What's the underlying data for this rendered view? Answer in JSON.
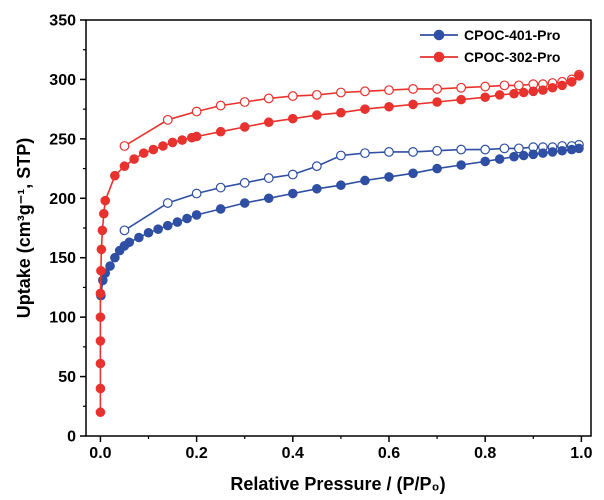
{
  "chart_data": {
    "type": "scatter",
    "xlabel": "Relative Pressure / (P/P₀)",
    "ylabel": "Uptake (cm³g⁻¹, STP)",
    "xlim": [
      -0.03,
      1.02
    ],
    "ylim": [
      0,
      350
    ],
    "xticks": [
      0.0,
      0.2,
      0.4,
      0.6,
      0.8,
      1.0
    ],
    "xtick_labels": [
      "0.0",
      "0.2",
      "0.4",
      "0.6",
      "0.8",
      "1.0"
    ],
    "yticks": [
      0,
      50,
      100,
      150,
      200,
      250,
      300,
      350
    ],
    "ytick_labels": [
      "0",
      "50",
      "100",
      "150",
      "200",
      "250",
      "300",
      "350"
    ],
    "grid": false,
    "legend_position": "top-right",
    "series": [
      {
        "name": "CPOC-401-Pro",
        "color": "#2e4fa3",
        "adsorption": [
          [
            0.001,
            118
          ],
          [
            0.005,
            131
          ],
          [
            0.01,
            137
          ],
          [
            0.02,
            143
          ],
          [
            0.03,
            150
          ],
          [
            0.04,
            156
          ],
          [
            0.05,
            160
          ],
          [
            0.06,
            163
          ],
          [
            0.08,
            167
          ],
          [
            0.1,
            171
          ],
          [
            0.12,
            174
          ],
          [
            0.14,
            177
          ],
          [
            0.16,
            180
          ],
          [
            0.18,
            183
          ],
          [
            0.2,
            186
          ],
          [
            0.25,
            191
          ],
          [
            0.3,
            196
          ],
          [
            0.35,
            200
          ],
          [
            0.4,
            204
          ],
          [
            0.45,
            208
          ],
          [
            0.5,
            211
          ],
          [
            0.55,
            215
          ],
          [
            0.6,
            218
          ],
          [
            0.65,
            221
          ],
          [
            0.7,
            225
          ],
          [
            0.75,
            228
          ],
          [
            0.8,
            231
          ],
          [
            0.83,
            233
          ],
          [
            0.86,
            235
          ],
          [
            0.88,
            236
          ],
          [
            0.9,
            237
          ],
          [
            0.92,
            238
          ],
          [
            0.94,
            239
          ],
          [
            0.96,
            240
          ],
          [
            0.98,
            241
          ],
          [
            0.995,
            242
          ]
        ],
        "desorption": [
          [
            0.995,
            245
          ],
          [
            0.98,
            244
          ],
          [
            0.96,
            244
          ],
          [
            0.94,
            243
          ],
          [
            0.92,
            243
          ],
          [
            0.9,
            243
          ],
          [
            0.87,
            242
          ],
          [
            0.84,
            242
          ],
          [
            0.8,
            241
          ],
          [
            0.75,
            241
          ],
          [
            0.7,
            240
          ],
          [
            0.65,
            239
          ],
          [
            0.6,
            239
          ],
          [
            0.55,
            238
          ],
          [
            0.5,
            236
          ],
          [
            0.45,
            227
          ],
          [
            0.4,
            220
          ],
          [
            0.35,
            217
          ],
          [
            0.3,
            213
          ],
          [
            0.25,
            209
          ],
          [
            0.2,
            204
          ],
          [
            0.14,
            196
          ],
          [
            0.05,
            173
          ]
        ]
      },
      {
        "name": "CPOC-302-Pro",
        "color": "#e8322e",
        "adsorption": [
          [
            0.0,
            20
          ],
          [
            0.0,
            40
          ],
          [
            0.0,
            61
          ],
          [
            0.0,
            80
          ],
          [
            0.0,
            100
          ],
          [
            0.0,
            120
          ],
          [
            0.001,
            139
          ],
          [
            0.002,
            157
          ],
          [
            0.004,
            173
          ],
          [
            0.007,
            187
          ],
          [
            0.01,
            198
          ],
          [
            0.03,
            219
          ],
          [
            0.05,
            227
          ],
          [
            0.07,
            233
          ],
          [
            0.09,
            238
          ],
          [
            0.11,
            241
          ],
          [
            0.13,
            244
          ],
          [
            0.15,
            247
          ],
          [
            0.17,
            249
          ],
          [
            0.19,
            251
          ],
          [
            0.2,
            252
          ],
          [
            0.25,
            256
          ],
          [
            0.3,
            260
          ],
          [
            0.35,
            264
          ],
          [
            0.4,
            267
          ],
          [
            0.45,
            270
          ],
          [
            0.5,
            272
          ],
          [
            0.55,
            275
          ],
          [
            0.6,
            277
          ],
          [
            0.65,
            279
          ],
          [
            0.7,
            281
          ],
          [
            0.75,
            283
          ],
          [
            0.8,
            285
          ],
          [
            0.83,
            287
          ],
          [
            0.86,
            288
          ],
          [
            0.88,
            289
          ],
          [
            0.9,
            290
          ],
          [
            0.92,
            291
          ],
          [
            0.94,
            293
          ],
          [
            0.96,
            295
          ],
          [
            0.98,
            298
          ],
          [
            0.995,
            303
          ]
        ],
        "desorption": [
          [
            0.995,
            304
          ],
          [
            0.98,
            300
          ],
          [
            0.96,
            298
          ],
          [
            0.94,
            297
          ],
          [
            0.92,
            296
          ],
          [
            0.9,
            296
          ],
          [
            0.87,
            295
          ],
          [
            0.84,
            295
          ],
          [
            0.8,
            294
          ],
          [
            0.75,
            293
          ],
          [
            0.7,
            292
          ],
          [
            0.65,
            292
          ],
          [
            0.6,
            291
          ],
          [
            0.55,
            290
          ],
          [
            0.5,
            289
          ],
          [
            0.45,
            287
          ],
          [
            0.4,
            286
          ],
          [
            0.35,
            284
          ],
          [
            0.3,
            281
          ],
          [
            0.25,
            278
          ],
          [
            0.2,
            273
          ],
          [
            0.14,
            266
          ],
          [
            0.05,
            244
          ]
        ]
      }
    ]
  }
}
